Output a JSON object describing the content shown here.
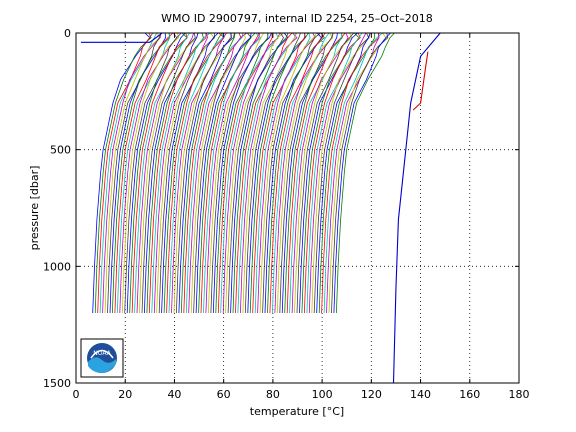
{
  "chart_data": {
    "type": "line",
    "title": "WMO ID 2900797, internal ID 2254, 25–Oct–2018",
    "xlabel": "temperature [°C]",
    "ylabel": "pressure [dbar]",
    "xlim": [
      0,
      180
    ],
    "ylim": [
      1500,
      0
    ],
    "y_reversed": true,
    "grid": "dotted",
    "xticks": [
      "0",
      "20",
      "40",
      "60",
      "80",
      "100",
      "120",
      "140",
      "160",
      "180"
    ],
    "yticks": [
      "0",
      "500",
      "1000",
      "1500"
    ],
    "profiles": {
      "description_count": 100,
      "offset_step": 1.0,
      "first_offset": 0,
      "bottom_pressure": 1220,
      "surface_temp_start": 28,
      "deep_temp_start": 4
    },
    "profile_points": [
      {
        "p": 0,
        "t": 0
      },
      {
        "p": 20,
        "t": 25
      },
      {
        "p": 60,
        "t": 22
      },
      {
        "p": 100,
        "t": 20
      },
      {
        "p": 200,
        "t": 15
      },
      {
        "p": 300,
        "t": 11
      },
      {
        "p": 400,
        "t": 9
      },
      {
        "p": 500,
        "t": 7
      },
      {
        "p": 600,
        "t": 6
      },
      {
        "p": 800,
        "t": 4.5
      },
      {
        "p": 1000,
        "t": 3.5
      },
      {
        "p": 1200,
        "t": 2.8
      }
    ],
    "highlighted_profile": {
      "color": "#0000cc",
      "points": [
        {
          "p": 40,
          "t": 2
        },
        {
          "p": 40,
          "t": 30
        },
        {
          "p": 0,
          "t": 35
        },
        {
          "p": 0,
          "t": 148
        },
        {
          "p": 100,
          "t": 140
        },
        {
          "p": 300,
          "t": 136
        },
        {
          "p": 500,
          "t": 134
        },
        {
          "p": 800,
          "t": 131
        },
        {
          "p": 1100,
          "t": 130
        },
        {
          "p": 1500,
          "t": 129
        }
      ]
    },
    "red_anomaly": {
      "color": "#dd0000",
      "points": [
        {
          "p": 80,
          "t": 143
        },
        {
          "p": 150,
          "t": 142
        },
        {
          "p": 300,
          "t": 140
        },
        {
          "p": 330,
          "t": 137
        }
      ]
    },
    "colors": [
      "#0000ff",
      "#007f00",
      "#ff0000",
      "#00bfbf",
      "#bf00bf",
      "#bfbf00",
      "#3f3f3f"
    ]
  },
  "logo": {
    "text": "NOAA"
  }
}
